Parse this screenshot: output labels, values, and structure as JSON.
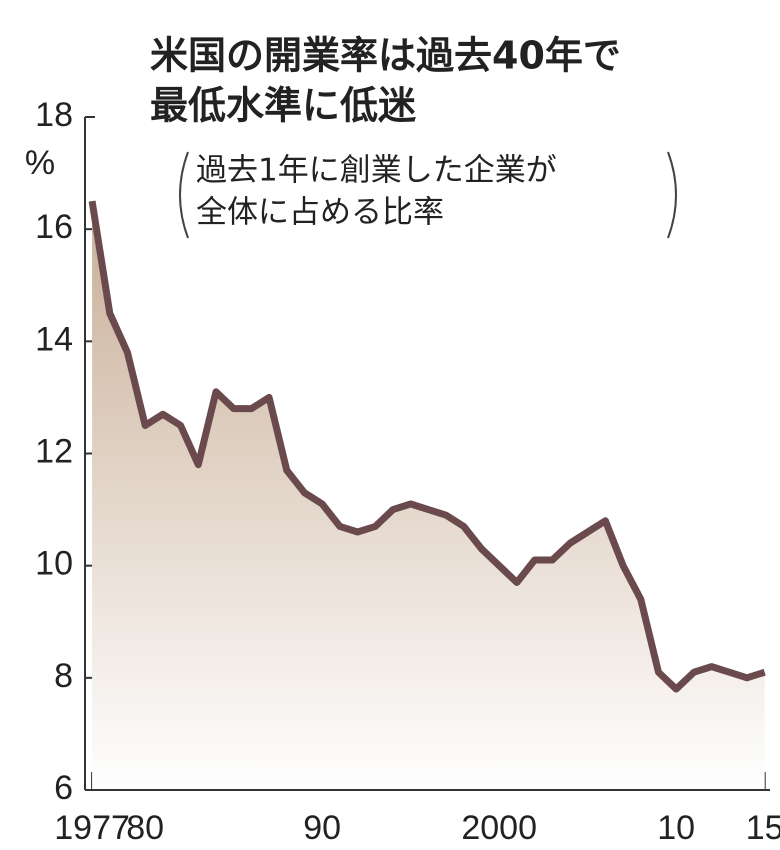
{
  "chart_data": {
    "type": "area",
    "title": [
      "米国の開業率は過去40年で",
      "最低水準に低迷"
    ],
    "subtitle": [
      "過去1年に創業した企業が",
      "全体に占める比率"
    ],
    "y_unit": "%",
    "x": [
      1977,
      1978,
      1979,
      1980,
      1981,
      1982,
      1983,
      1984,
      1985,
      1986,
      1987,
      1988,
      1989,
      1990,
      1991,
      1992,
      1993,
      1994,
      1995,
      1996,
      1997,
      1998,
      1999,
      2000,
      2001,
      2002,
      2003,
      2004,
      2005,
      2006,
      2007,
      2008,
      2009,
      2010,
      2011,
      2012,
      2013,
      2014,
      2015
    ],
    "series": [
      {
        "color": "#6b4a4e",
        "fill": "#c8ae96",
        "values": [
          16.5,
          14.5,
          13.8,
          12.5,
          12.7,
          12.5,
          11.8,
          13.1,
          12.8,
          12.8,
          13.0,
          11.7,
          11.3,
          11.1,
          10.7,
          10.6,
          10.7,
          11.0,
          11.1,
          11.0,
          10.9,
          10.7,
          10.3,
          10.0,
          9.7,
          10.1,
          10.1,
          10.4,
          10.6,
          10.8,
          10.0,
          9.4,
          8.1,
          7.8,
          8.1,
          8.2,
          8.1,
          8.0,
          8.1
        ]
      }
    ],
    "xlim": [
      1976.6,
      2015.3
    ],
    "xticks": [
      {
        "value": 1977,
        "label": "1977"
      },
      {
        "value": 1980,
        "label": "80"
      },
      {
        "value": 1990,
        "label": "90"
      },
      {
        "value": 2000,
        "label": "2000"
      },
      {
        "value": 2010,
        "label": "10"
      },
      {
        "value": 2015,
        "label": "15"
      }
    ],
    "ylim": [
      6,
      18
    ],
    "yticks": [
      6,
      8,
      10,
      12,
      14,
      16,
      18
    ]
  }
}
